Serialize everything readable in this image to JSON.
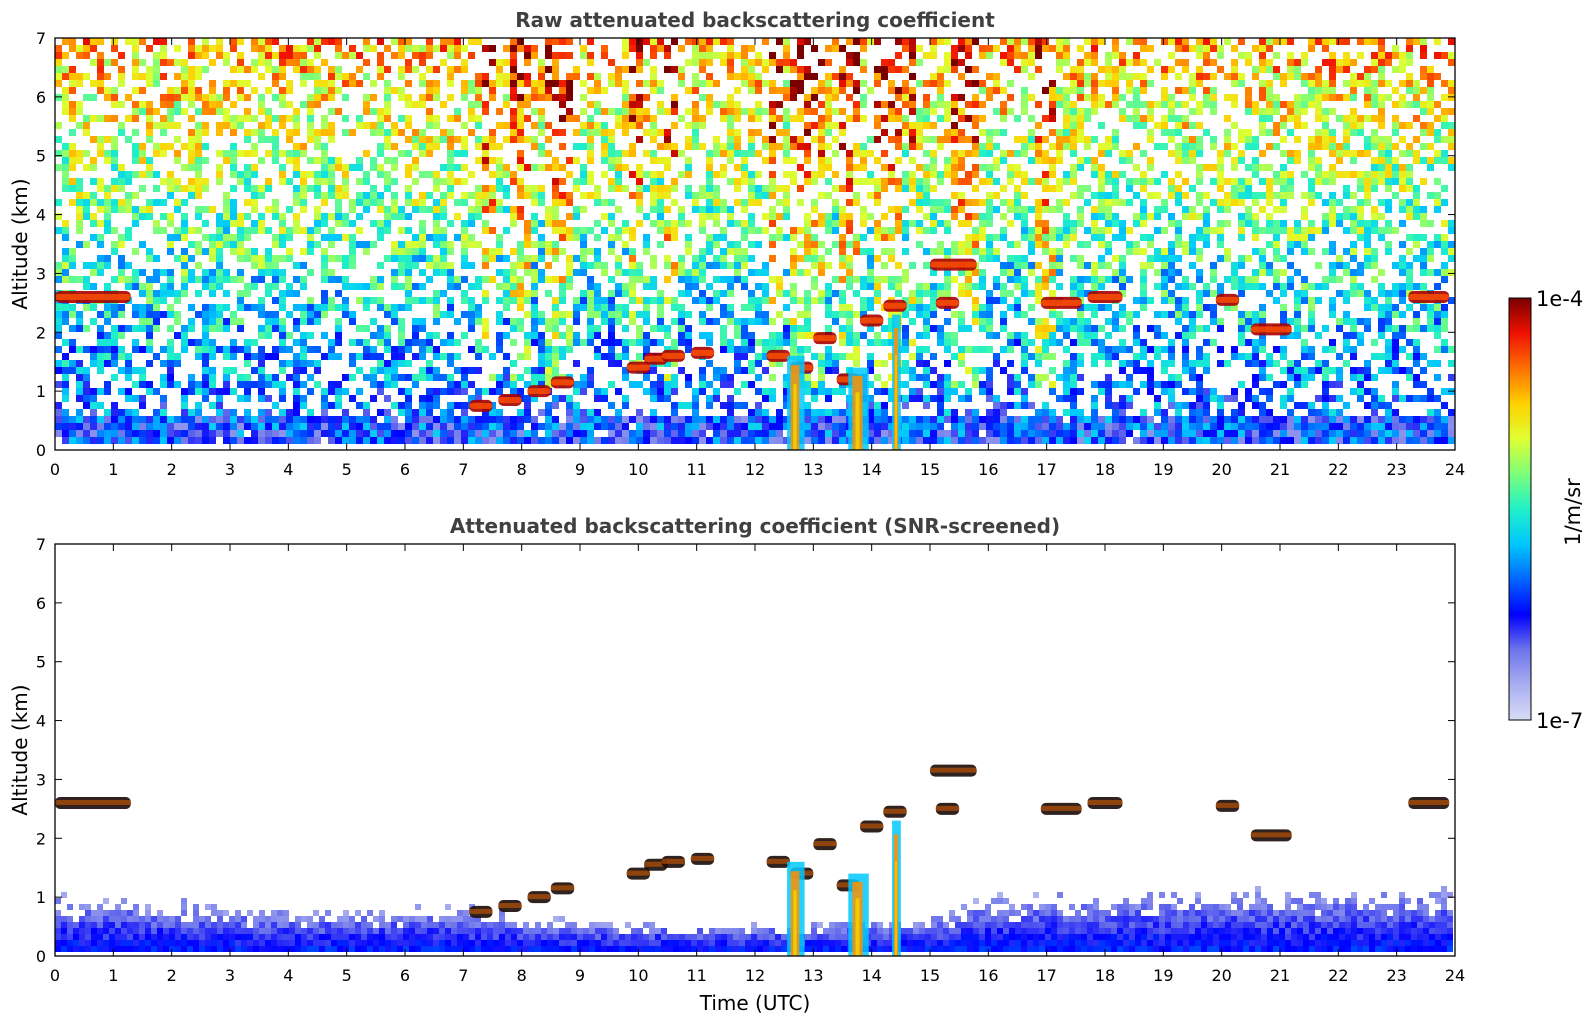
{
  "chart_data": [
    {
      "type": "heatmap",
      "title": "Raw attenuated backscattering coefficient",
      "xlabel": "",
      "ylabel": "Altitude (km)",
      "xlim": [
        0,
        24
      ],
      "ylim": [
        0,
        7
      ],
      "xticks": [
        "0",
        "1",
        "2",
        "3",
        "4",
        "5",
        "6",
        "7",
        "8",
        "9",
        "10",
        "11",
        "12",
        "13",
        "14",
        "15",
        "16",
        "17",
        "18",
        "19",
        "20",
        "21",
        "22",
        "23",
        "24"
      ],
      "yticks": [
        "0",
        "1",
        "2",
        "3",
        "4",
        "5",
        "6",
        "7"
      ],
      "noise": "dense speckle everywhere; blue near surface grading to green/yellow aloft, stronger red/yellow streaks during precipitation",
      "streaks": [
        [
          7.3,
          7.5
        ],
        [
          7.8,
          8.1
        ],
        [
          8.4,
          8.7
        ],
        [
          8.8,
          8.9
        ],
        [
          9.9,
          10.1
        ],
        [
          10.4,
          10.7
        ],
        [
          12.2,
          12.5
        ],
        [
          12.6,
          13.2
        ],
        [
          13.5,
          13.8
        ],
        [
          14.0,
          14.5
        ],
        [
          14.6,
          14.8
        ],
        [
          15.4,
          15.8
        ],
        [
          16.8,
          17.2
        ]
      ],
      "layers": [
        {
          "x": [
            0,
            1.3
          ],
          "y": 2.6
        },
        {
          "x": 7.3,
          "y": 0.75
        },
        {
          "x": 7.8,
          "y": 0.85
        },
        {
          "x": 8.3,
          "y": 1.0
        },
        {
          "x": 8.7,
          "y": 1.15
        },
        {
          "x": 10.0,
          "y": 1.4
        },
        {
          "x": 10.3,
          "y": 1.55
        },
        {
          "x": 10.6,
          "y": 1.6
        },
        {
          "x": 11.1,
          "y": 1.65
        },
        {
          "x": 12.4,
          "y": 1.6
        },
        {
          "x": 12.8,
          "y": 1.4
        },
        {
          "x": 13.2,
          "y": 1.9
        },
        {
          "x": 13.6,
          "y": 1.2
        },
        {
          "x": 14.0,
          "y": 2.2
        },
        {
          "x": 14.4,
          "y": 2.45
        },
        {
          "x": [
            15.0,
            15.8
          ],
          "y": 3.15
        },
        {
          "x": 15.3,
          "y": 2.5
        },
        {
          "x": [
            16.9,
            17.6
          ],
          "y": 2.5
        },
        {
          "x": [
            17.7,
            18.3
          ],
          "y": 2.6
        },
        {
          "x": 20.1,
          "y": 2.55
        },
        {
          "x": [
            20.5,
            21.2
          ],
          "y": 2.05
        },
        {
          "x": [
            23.2,
            23.9
          ],
          "y": 2.6
        }
      ],
      "precip_columns": [
        {
          "x": [
            12.55,
            12.85
          ],
          "top": 1.6
        },
        {
          "x": [
            13.6,
            13.95
          ],
          "top": 1.4
        },
        {
          "x": [
            14.35,
            14.5
          ],
          "top": 2.3
        }
      ]
    },
    {
      "type": "heatmap",
      "title": "Attenuated backscattering coefficient (SNR-screened)",
      "xlabel": "Time (UTC)",
      "ylabel": "Altitude (km)",
      "xlim": [
        0,
        24
      ],
      "ylim": [
        0,
        7
      ],
      "xticks": [
        "0",
        "1",
        "2",
        "3",
        "4",
        "5",
        "6",
        "7",
        "8",
        "9",
        "10",
        "11",
        "12",
        "13",
        "14",
        "15",
        "16",
        "17",
        "18",
        "19",
        "20",
        "21",
        "22",
        "23",
        "24"
      ],
      "yticks": [
        "0",
        "1",
        "2",
        "3",
        "4",
        "5",
        "6",
        "7"
      ],
      "boundary_layer_top_km": [
        {
          "x": 0,
          "y": 0.95
        },
        {
          "x": 2,
          "y": 0.8
        },
        {
          "x": 4,
          "y": 0.7
        },
        {
          "x": 6,
          "y": 0.7
        },
        {
          "x": 7,
          "y": 0.75
        },
        {
          "x": 8,
          "y": 0.6
        },
        {
          "x": 9,
          "y": 0.5
        },
        {
          "x": 10,
          "y": 0.5
        },
        {
          "x": 12,
          "y": 0.45
        },
        {
          "x": 15,
          "y": 0.55
        },
        {
          "x": 16,
          "y": 0.9
        },
        {
          "x": 18,
          "y": 0.95
        },
        {
          "x": 20,
          "y": 1.0
        },
        {
          "x": 22,
          "y": 1.0
        },
        {
          "x": 24,
          "y": 1.0
        }
      ],
      "layers": [
        {
          "x": [
            0,
            1.3
          ],
          "y": 2.6
        },
        {
          "x": 7.3,
          "y": 0.75
        },
        {
          "x": 7.8,
          "y": 0.85
        },
        {
          "x": 8.3,
          "y": 1.0
        },
        {
          "x": 8.7,
          "y": 1.15
        },
        {
          "x": 10.0,
          "y": 1.4
        },
        {
          "x": 10.3,
          "y": 1.55
        },
        {
          "x": 10.6,
          "y": 1.6
        },
        {
          "x": 11.1,
          "y": 1.65
        },
        {
          "x": 12.4,
          "y": 1.6
        },
        {
          "x": 12.8,
          "y": 1.4
        },
        {
          "x": 13.2,
          "y": 1.9
        },
        {
          "x": 13.6,
          "y": 1.2
        },
        {
          "x": 14.0,
          "y": 2.2
        },
        {
          "x": 14.4,
          "y": 2.45
        },
        {
          "x": [
            15.0,
            15.8
          ],
          "y": 3.15
        },
        {
          "x": 15.3,
          "y": 2.5
        },
        {
          "x": [
            16.9,
            17.6
          ],
          "y": 2.5
        },
        {
          "x": [
            17.7,
            18.3
          ],
          "y": 2.6
        },
        {
          "x": 20.1,
          "y": 2.55
        },
        {
          "x": [
            20.5,
            21.2
          ],
          "y": 2.05
        },
        {
          "x": [
            23.2,
            23.9
          ],
          "y": 2.6
        }
      ],
      "precip_columns": [
        {
          "x": [
            12.55,
            12.85
          ],
          "top": 1.6
        },
        {
          "x": [
            13.6,
            13.95
          ],
          "top": 1.4
        },
        {
          "x": [
            14.35,
            14.5
          ],
          "top": 2.3
        }
      ]
    }
  ],
  "colorbar": {
    "label": "1/m/sr",
    "max_label": "1e-4",
    "min_label": "1e-7",
    "scale": "log",
    "colormap": "jet",
    "stops": [
      "#d9dcf5",
      "#a9aef0",
      "#6d74ea",
      "#0000ff",
      "#0066ff",
      "#00c8ff",
      "#20f0c8",
      "#7dff7a",
      "#e0ff30",
      "#ffd000",
      "#ff7000",
      "#f01000",
      "#7a0000"
    ]
  }
}
